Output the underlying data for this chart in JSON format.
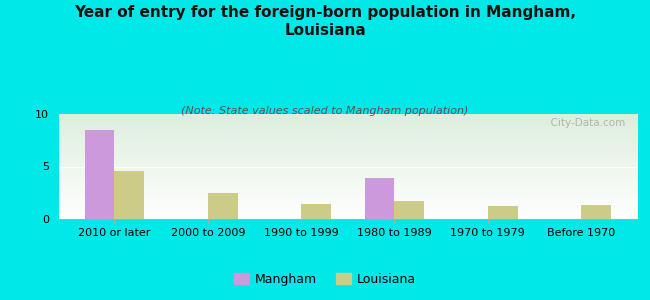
{
  "title": "Year of entry for the foreign-born population in Mangham,\nLouisiana",
  "subtitle": "(Note: State values scaled to Mangham population)",
  "categories": [
    "2010 or later",
    "2000 to 2009",
    "1990 to 1999",
    "1980 to 1989",
    "1970 to 1979",
    "Before 1970"
  ],
  "mangham_values": [
    8.5,
    0,
    0,
    3.9,
    0,
    0
  ],
  "louisiana_values": [
    4.6,
    2.5,
    1.4,
    1.7,
    1.2,
    1.3
  ],
  "mangham_color": "#cc99dd",
  "louisiana_color": "#cccc88",
  "background_color": "#00e8e8",
  "plot_bg_top": "#ffffff",
  "plot_bg_bottom": "#ddeedd",
  "ylim": [
    0,
    10
  ],
  "yticks": [
    0,
    5,
    10
  ],
  "bar_width": 0.32,
  "title_fontsize": 11,
  "subtitle_fontsize": 8,
  "tick_fontsize": 8,
  "legend_fontsize": 9,
  "watermark": "  City-Data.com"
}
